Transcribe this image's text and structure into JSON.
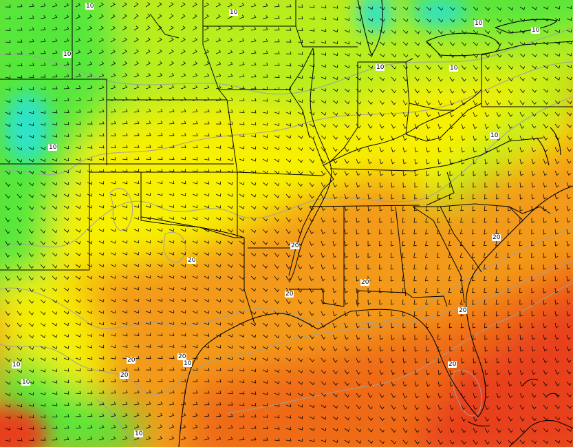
{
  "map": {
    "contour_labels": [
      {
        "text": "10"
      },
      {
        "text": "10"
      },
      {
        "text": "10"
      },
      {
        "text": "10"
      },
      {
        "text": "10"
      },
      {
        "text": "10"
      },
      {
        "text": "10"
      },
      {
        "text": "10"
      },
      {
        "text": "10"
      },
      {
        "text": "10"
      },
      {
        "text": "20"
      },
      {
        "text": "20"
      },
      {
        "text": "20"
      },
      {
        "text": "20"
      },
      {
        "text": "20"
      },
      {
        "text": "20"
      },
      {
        "text": "20"
      },
      {
        "text": "20"
      },
      {
        "text": "20"
      },
      {
        "text": "20"
      },
      {
        "text": "10"
      },
      {
        "text": "10"
      },
      {
        "text": "10"
      }
    ],
    "colors": {
      "cool_cyan": "#2fe3c8",
      "green": "#55e83a",
      "yellow_green": "#b8ee1e",
      "yellow": "#f7f000",
      "orange_light": "#f6c21a",
      "orange": "#f39a1a",
      "orange_deep": "#ef6a14",
      "red": "#e8401a",
      "contour": "#a0a0a0",
      "boundary": "#000000"
    }
  }
}
